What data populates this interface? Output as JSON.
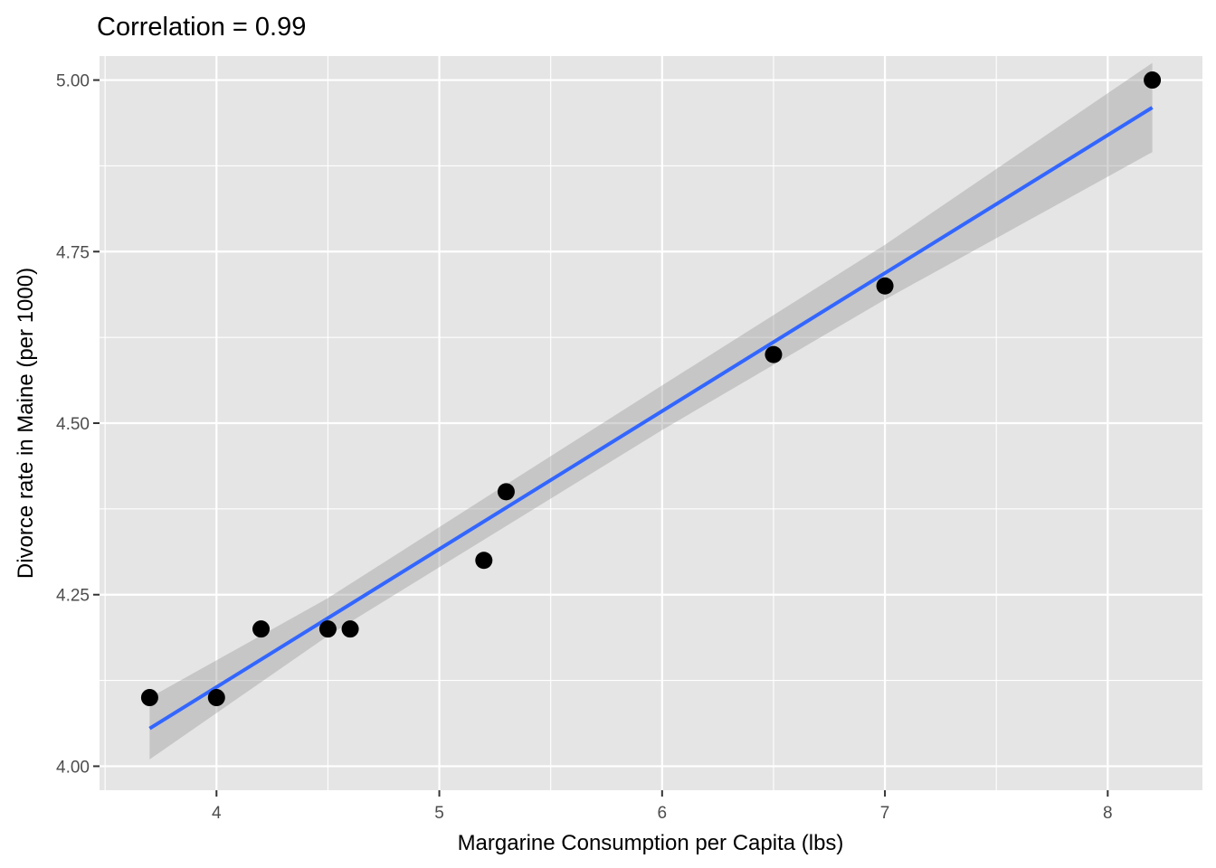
{
  "chart_data": {
    "type": "scatter",
    "title": "Correlation = 0.99",
    "xlabel": "Margarine Consumption per Capita (lbs)",
    "ylabel": "Divorce rate in Maine (per 1000)",
    "xlim": [
      3.475,
      8.425
    ],
    "ylim": [
      3.965,
      5.035
    ],
    "x_ticks": [
      4,
      5,
      6,
      7,
      8
    ],
    "x_tick_labels": [
      "4",
      "5",
      "6",
      "7",
      "8"
    ],
    "y_ticks": [
      4.0,
      4.25,
      4.5,
      4.75,
      5.0
    ],
    "y_tick_labels": [
      "4.00",
      "4.25",
      "4.50",
      "4.75",
      "5.00"
    ],
    "x_minor_ticks": [
      3.5,
      4.5,
      5.5,
      6.5,
      7.5
    ],
    "y_minor_ticks": [
      4.125,
      4.375,
      4.625,
      4.875
    ],
    "grid": true,
    "panel_background": "#e5e5e5",
    "grid_color": "#ffffff",
    "point_color": "#000000",
    "line_color": "#3366ff",
    "band_color": "#999999",
    "points": [
      {
        "x": 3.7,
        "y": 4.1
      },
      {
        "x": 4.0,
        "y": 4.1
      },
      {
        "x": 4.2,
        "y": 4.2
      },
      {
        "x": 4.5,
        "y": 4.2
      },
      {
        "x": 4.6,
        "y": 4.2
      },
      {
        "x": 5.2,
        "y": 4.3
      },
      {
        "x": 5.3,
        "y": 4.4
      },
      {
        "x": 6.5,
        "y": 4.6
      },
      {
        "x": 7.0,
        "y": 4.7
      },
      {
        "x": 8.2,
        "y": 5.0
      }
    ],
    "trend_line": {
      "x": [
        3.7,
        8.2
      ],
      "y": [
        4.055,
        4.96
      ]
    },
    "confidence_band": {
      "x": [
        3.7,
        4.5,
        5.2,
        6.0,
        7.0,
        8.2
      ],
      "lower": [
        4.01,
        4.19,
        4.33,
        4.49,
        4.68,
        4.895
      ],
      "upper": [
        4.1,
        4.245,
        4.39,
        4.555,
        4.76,
        5.025
      ]
    }
  }
}
